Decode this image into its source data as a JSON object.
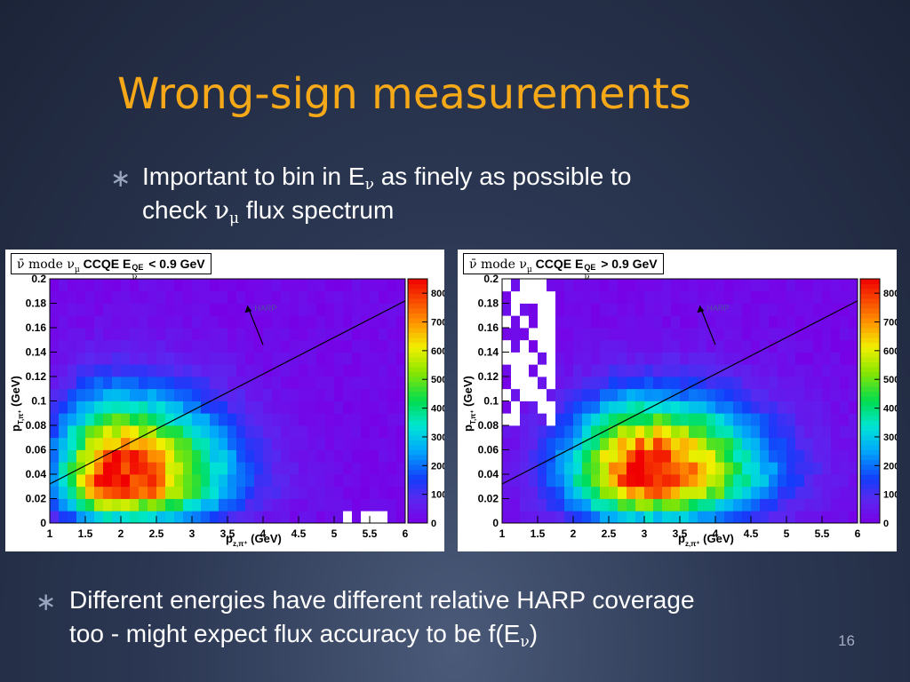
{
  "slide": {
    "title": "Wrong-sign measurements",
    "bullet1": {
      "text_a": "Important to bin in E",
      "sub_a": "ν",
      "text_b": " as finely as possible to",
      "text_c": "check ",
      "sym_c": "ν",
      "sub_c": "μ",
      "text_d": " flux spectrum"
    },
    "bullet2": {
      "line1": "Different energies have different relative HARP coverage",
      "text_a": "too - might expect flux accuracy to be f(E",
      "sub_a": "ν",
      "text_b": ")"
    },
    "bullet_mark": "∗",
    "page_number": "16"
  },
  "chart_data": [
    {
      "type": "heatmap",
      "title_prefix": "ν̄ mode ",
      "title_nu": "ν",
      "title_mu": "μ",
      "title_mid": " CCQE E",
      "title_sup": "QE",
      "title_sub": "ν",
      "title_suffix": " < 0.9 GeV",
      "xlabel": "p",
      "xlabel_sub": "z,π⁺",
      "xlabel_unit": " (GeV)",
      "ylabel": "p",
      "ylabel_sub": "T,π⁺",
      "ylabel_unit": " (GeV)",
      "xlim": [
        1,
        6
      ],
      "ylim": [
        0,
        0.2
      ],
      "xticks": [
        "1",
        "1.5",
        "2",
        "2.5",
        "3",
        "3.5",
        "4",
        "4.5",
        "5",
        "5.5",
        "6"
      ],
      "yticks": [
        "0",
        "0.02",
        "0.04",
        "0.06",
        "0.08",
        "0.1",
        "0.12",
        "0.14",
        "0.16",
        "0.18",
        "0.2"
      ],
      "zlim": [
        0,
        850
      ],
      "zticks": [
        "0",
        "100",
        "200",
        "300",
        "400",
        "500",
        "600",
        "700",
        "800"
      ],
      "peak": {
        "x": 1.95,
        "y": 0.035,
        "z": 850
      },
      "harp_label": "HARP",
      "harp_line": {
        "x": [
          1,
          6
        ],
        "y": [
          0.032,
          0.182
        ]
      }
    },
    {
      "type": "heatmap",
      "title_prefix": "ν̄ mode ",
      "title_nu": "ν",
      "title_mu": "μ",
      "title_mid": " CCQE E",
      "title_sup": "QE",
      "title_sub": "ν",
      "title_suffix": " > 0.9 GeV",
      "xlabel": "p",
      "xlabel_sub": "z,π⁺",
      "xlabel_unit": " (GeV)",
      "ylabel": "p",
      "ylabel_sub": "T,π⁺",
      "ylabel_unit": " (GeV)",
      "xlim": [
        1,
        6
      ],
      "ylim": [
        0,
        0.2
      ],
      "xticks": [
        "1",
        "1.5",
        "2",
        "2.5",
        "3",
        "3.5",
        "4",
        "4.5",
        "5",
        "5.5",
        "6"
      ],
      "yticks": [
        "0",
        "0.02",
        "0.04",
        "0.06",
        "0.08",
        "0.1",
        "0.12",
        "0.14",
        "0.16",
        "0.18",
        "0.2"
      ],
      "zlim": [
        0,
        850
      ],
      "zticks": [
        "0",
        "100",
        "200",
        "300",
        "400",
        "500",
        "600",
        "700",
        "800"
      ],
      "peak": {
        "x": 3.05,
        "y": 0.04,
        "z": 850
      },
      "harp_label": "HARP",
      "harp_line": {
        "x": [
          1,
          6
        ],
        "y": [
          0.032,
          0.182
        ]
      }
    }
  ],
  "colors": {
    "title": "#f5a818",
    "text": "#ffffff",
    "harp_label": "#5050a0"
  }
}
